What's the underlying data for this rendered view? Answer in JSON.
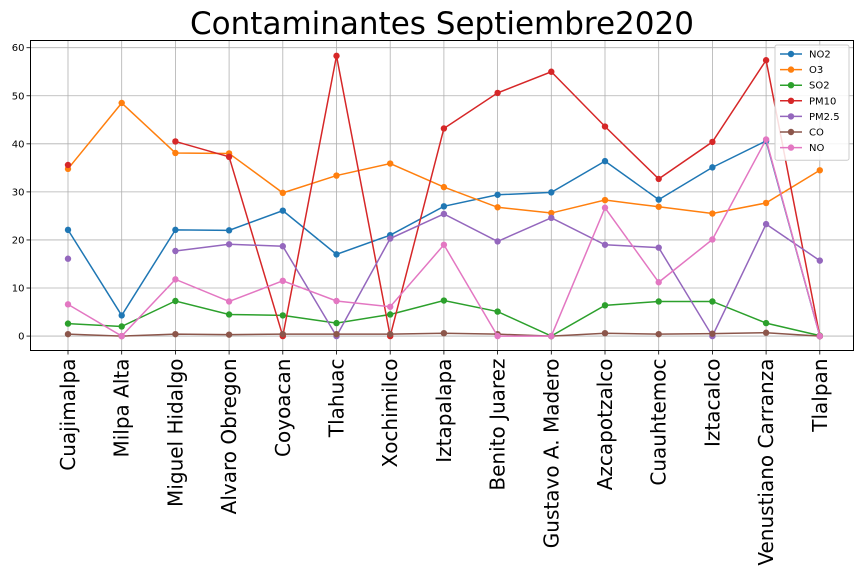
{
  "chart_data": {
    "type": "line",
    "title": "Contaminantes Septiembre2020",
    "xlabel": "",
    "ylabel": "",
    "ylim": [
      -3,
      61.5
    ],
    "yticks": [
      0,
      10,
      20,
      30,
      40,
      50,
      60
    ],
    "grid": true,
    "legend_position": "top-right",
    "categories": [
      "Cuajimalpa",
      "Milpa Alta",
      "Miguel Hidalgo",
      "Alvaro Obregon",
      "Coyoacan",
      "Tlahuac",
      "Xochimilco",
      "Iztapalapa",
      "Benito Juarez",
      "Gustavo A. Madero",
      "Azcapotzalco",
      "Cuauhtemoc",
      "Iztacalco",
      "Venustiano Carranza",
      "Tlalpan"
    ],
    "series": [
      {
        "name": "NO2",
        "color": "#1f77b4",
        "values": [
          22.1,
          4.3,
          22.1,
          22.0,
          26.1,
          17.0,
          21.0,
          27.0,
          29.4,
          29.9,
          36.4,
          28.4,
          35.1,
          40.6,
          0.0
        ]
      },
      {
        "name": "O3",
        "color": "#ff7f0e",
        "values": [
          34.8,
          48.5,
          38.1,
          38.0,
          29.8,
          33.4,
          35.9,
          31.0,
          26.8,
          25.6,
          28.3,
          26.9,
          25.5,
          27.7,
          34.5
        ]
      },
      {
        "name": "SO2",
        "color": "#2ca02c",
        "values": [
          2.6,
          2.0,
          7.3,
          4.5,
          4.3,
          2.7,
          4.5,
          7.4,
          5.1,
          0.0,
          6.4,
          7.2,
          7.2,
          2.7,
          0.1
        ]
      },
      {
        "name": "PM10",
        "color": "#d62728",
        "values": [
          35.6,
          null,
          40.5,
          37.3,
          0.0,
          58.3,
          0.0,
          43.2,
          50.6,
          55.0,
          43.6,
          32.7,
          40.4,
          57.4,
          0.0
        ]
      },
      {
        "name": "PM2.5",
        "color": "#9467bd",
        "values": [
          16.1,
          null,
          17.7,
          19.1,
          18.7,
          0.0,
          20.3,
          25.4,
          19.7,
          24.6,
          19.0,
          18.4,
          0.0,
          23.3,
          15.7
        ]
      },
      {
        "name": "CO",
        "color": "#8c564b",
        "values": [
          0.4,
          0.0,
          0.4,
          0.3,
          0.4,
          0.4,
          0.4,
          0.6,
          0.4,
          0.0,
          0.6,
          0.4,
          0.5,
          0.7,
          0.0
        ]
      },
      {
        "name": "NO",
        "color": "#e377c2",
        "values": [
          6.6,
          0.0,
          11.8,
          7.2,
          11.5,
          7.3,
          6.1,
          19.0,
          0.0,
          0.0,
          26.7,
          11.2,
          20.1,
          40.9,
          0.0
        ]
      }
    ]
  }
}
